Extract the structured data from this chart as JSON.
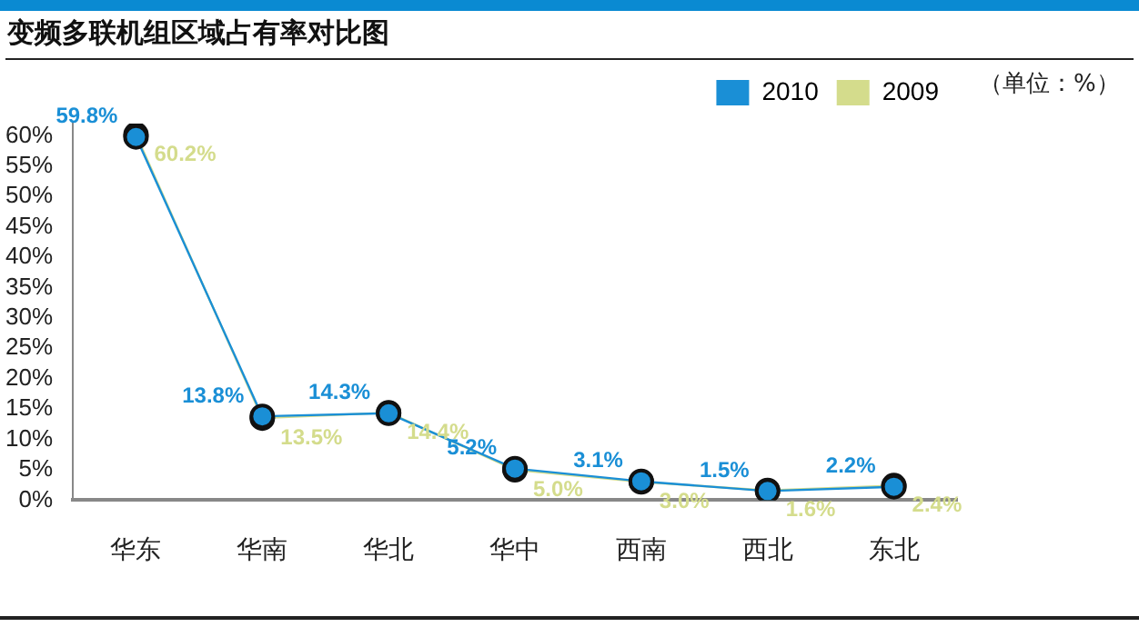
{
  "chart_data": {
    "type": "line",
    "title": "变频多联机组区域占有率对比图",
    "annotations": [
      "（单位：%）"
    ],
    "categories": [
      "华东",
      "华南",
      "华北",
      "华中",
      "西南",
      "西北",
      "东北"
    ],
    "series": [
      {
        "name": "2010",
        "color": "#1a8fd6",
        "values": [
          59.8,
          13.8,
          14.3,
          5.2,
          3.1,
          1.5,
          2.2
        ],
        "value_labels": [
          "59.8%",
          "13.8%",
          "14.3%",
          "5.2%",
          "3.1%",
          "1.5%",
          "2.2%"
        ]
      },
      {
        "name": "2009",
        "color": "#d4dc8c",
        "values": [
          60.2,
          13.5,
          14.4,
          5.0,
          3.0,
          1.6,
          2.4
        ],
        "value_labels": [
          "60.2%",
          "13.5%",
          "14.4%",
          "5.0%",
          "3.0%",
          "1.6%",
          "2.4%"
        ]
      }
    ],
    "ylim": [
      0,
      62
    ],
    "yticks": [
      {
        "value": 0,
        "label": "0%"
      },
      {
        "value": 5,
        "label": "5%"
      },
      {
        "value": 10,
        "label": "10%"
      },
      {
        "value": 15,
        "label": "15%"
      },
      {
        "value": 20,
        "label": "20%"
      },
      {
        "value": 25,
        "label": "25%"
      },
      {
        "value": 30,
        "label": "30%"
      },
      {
        "value": 35,
        "label": "35%"
      },
      {
        "value": 40,
        "label": "40%"
      },
      {
        "value": 45,
        "label": "45%"
      },
      {
        "value": 50,
        "label": "50%"
      },
      {
        "value": 55,
        "label": "55%"
      },
      {
        "value": 60,
        "label": "60%"
      }
    ],
    "legend": "top right",
    "grid": false,
    "marker": "circle"
  }
}
